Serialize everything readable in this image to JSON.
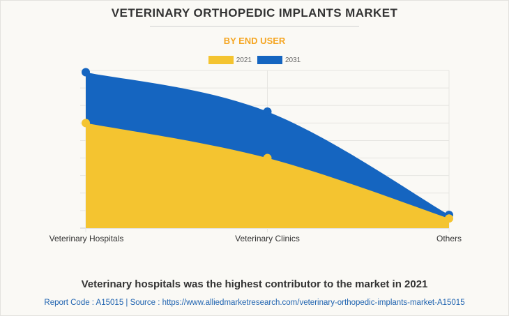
{
  "chart_data": {
    "type": "area",
    "title": "VETERINARY ORTHOPEDIC IMPLANTS MARKET",
    "subtitle": "BY END USER",
    "categories": [
      "Veterinary Hospitals",
      "Veterinary Clinics",
      "Others"
    ],
    "series": [
      {
        "name": "2031",
        "color": "#1565c0",
        "values": [
          8.9,
          6.65,
          0.75
        ]
      },
      {
        "name": "2021",
        "color": "#f4c430",
        "values": [
          6.0,
          4.0,
          0.55
        ]
      }
    ],
    "xlabel": "",
    "ylabel": "",
    "ylim": [
      0,
      9
    ],
    "y_tick_labels_shown": false,
    "grid": true,
    "legend_position": "top-center",
    "value_units": "relative (no y-axis labels shown; gridline units)"
  },
  "legend": [
    {
      "label": "2021",
      "color": "#f4c430"
    },
    {
      "label": "2031",
      "color": "#1565c0"
    }
  ],
  "footer": {
    "conclusion": "Veterinary hospitals was the highest contributor to the market in 2021",
    "source": "Report Code : A15015  |  Source : https://www.alliedmarketresearch.com/veterinary-orthopedic-implants-market-A15015"
  }
}
